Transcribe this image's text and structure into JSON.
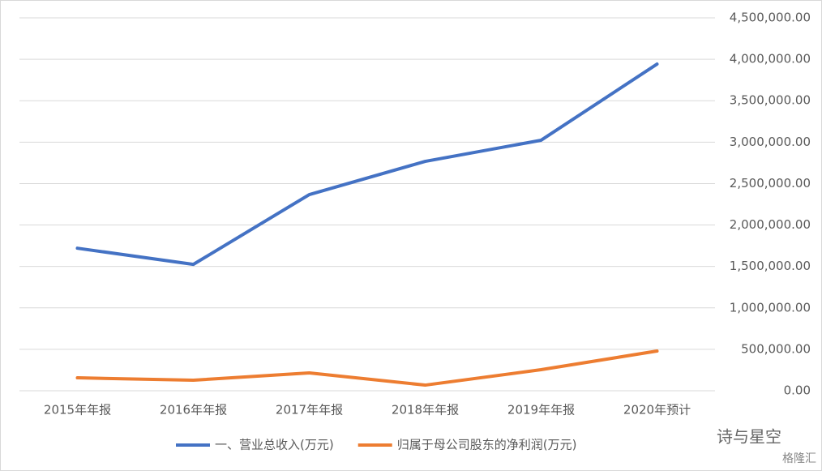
{
  "chart_data": {
    "type": "line",
    "categories": [
      "2015年年报",
      "2016年年报",
      "2017年年报",
      "2018年年报",
      "2019年年报",
      "2020年预计"
    ],
    "series": [
      {
        "name": "一、营业总收入(万元)",
        "color": "#4472c4",
        "values": [
          1720000,
          1525000,
          2367000,
          2768000,
          3023000,
          3942000
        ]
      },
      {
        "name": "归属于母公司股东的净利润(万元)",
        "color": "#ed7d31",
        "values": [
          156000,
          127000,
          215000,
          68000,
          254000,
          479000
        ]
      }
    ],
    "ylim": [
      0,
      4500000
    ],
    "yticks": [
      {
        "value": 0,
        "label": "0.00"
      },
      {
        "value": 500000,
        "label": "500,000.00"
      },
      {
        "value": 1000000,
        "label": "1,000,000.00"
      },
      {
        "value": 1500000,
        "label": "1,500,000.00"
      },
      {
        "value": 2000000,
        "label": "2,000,000.00"
      },
      {
        "value": 2500000,
        "label": "2,500,000.00"
      },
      {
        "value": 3000000,
        "label": "3,000,000.00"
      },
      {
        "value": 3500000,
        "label": "3,500,000.00"
      },
      {
        "value": 4000000,
        "label": "4,000,000.00"
      },
      {
        "value": 4500000,
        "label": "4,500,000.00"
      }
    ],
    "grid": true,
    "legend": "bottom",
    "annotations": [
      "诗与星空",
      "格隆汇"
    ]
  }
}
